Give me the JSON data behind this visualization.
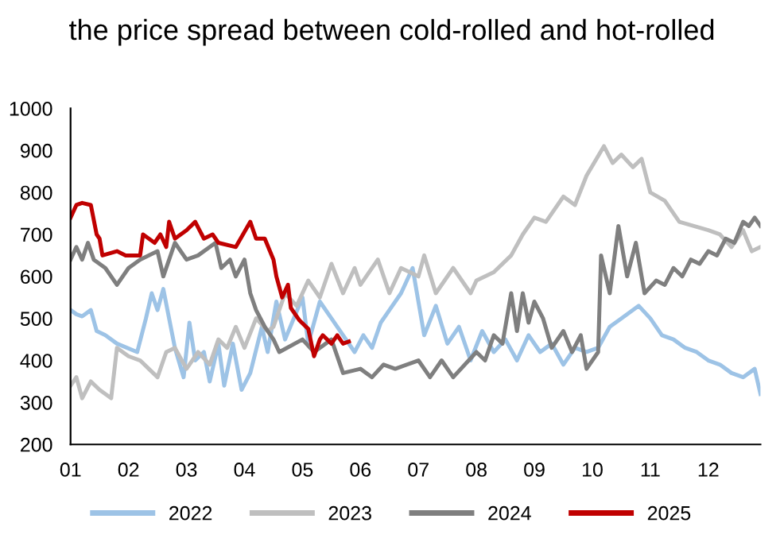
{
  "chart_data": {
    "type": "line",
    "title": "the price spread between cold-rolled and hot-rolled",
    "xlim": [
      1,
      12.9
    ],
    "ylim": [
      200,
      1000
    ],
    "yticks": [
      200,
      300,
      400,
      500,
      600,
      700,
      800,
      900,
      1000
    ],
    "xticks": [
      {
        "value": 1,
        "label": "01"
      },
      {
        "value": 2,
        "label": "02"
      },
      {
        "value": 3,
        "label": "03"
      },
      {
        "value": 4,
        "label": "04"
      },
      {
        "value": 5,
        "label": "05"
      },
      {
        "value": 6,
        "label": "06"
      },
      {
        "value": 7,
        "label": "07"
      },
      {
        "value": 8,
        "label": "08"
      },
      {
        "value": 9,
        "label": "09"
      },
      {
        "value": 10,
        "label": "10"
      },
      {
        "value": 11,
        "label": "11"
      },
      {
        "value": 12,
        "label": "12"
      }
    ],
    "grid": false,
    "legend": "bottom",
    "marker": "none",
    "line_style": "solid",
    "series": [
      {
        "name": "2022",
        "color": "#9dc3e6",
        "x": [
          1.0,
          1.1,
          1.2,
          1.35,
          1.45,
          1.6,
          1.8,
          2.15,
          2.3,
          2.4,
          2.5,
          2.6,
          2.7,
          2.8,
          2.95,
          3.05,
          3.15,
          3.3,
          3.4,
          3.55,
          3.65,
          3.8,
          3.95,
          4.1,
          4.3,
          4.4,
          4.55,
          4.7,
          5.0,
          5.1,
          5.3,
          5.5,
          5.9,
          6.05,
          6.2,
          6.35,
          6.5,
          6.7,
          6.9,
          7.1,
          7.3,
          7.5,
          7.7,
          7.9,
          8.1,
          8.3,
          8.5,
          8.7,
          8.9,
          9.1,
          9.3,
          9.5,
          9.7,
          9.9,
          10.1,
          10.3,
          10.5,
          10.8,
          11.0,
          11.2,
          11.4,
          11.6,
          11.8,
          12.0,
          12.2,
          12.4,
          12.6,
          12.8,
          12.9
        ],
        "values": [
          520,
          510,
          505,
          520,
          470,
          460,
          440,
          420,
          500,
          560,
          520,
          570,
          500,
          430,
          360,
          490,
          400,
          420,
          350,
          440,
          340,
          440,
          330,
          370,
          480,
          420,
          540,
          450,
          550,
          440,
          540,
          500,
          420,
          460,
          430,
          490,
          520,
          560,
          620,
          460,
          530,
          440,
          480,
          400,
          470,
          420,
          450,
          400,
          460,
          420,
          440,
          390,
          430,
          420,
          430,
          480,
          500,
          530,
          500,
          460,
          450,
          430,
          420,
          400,
          390,
          370,
          360,
          380,
          320
        ]
      },
      {
        "name": "2023",
        "color": "#bfbfbf",
        "x": [
          1.0,
          1.1,
          1.2,
          1.35,
          1.5,
          1.7,
          1.8,
          2.0,
          2.2,
          2.35,
          2.5,
          2.65,
          2.8,
          3.0,
          3.2,
          3.4,
          3.55,
          3.7,
          3.85,
          4.0,
          4.2,
          4.4,
          4.5,
          4.7,
          4.9,
          5.1,
          5.3,
          5.5,
          5.7,
          5.9,
          6.0,
          6.3,
          6.5,
          6.7,
          7.0,
          7.1,
          7.3,
          7.6,
          7.9,
          8.0,
          8.3,
          8.6,
          8.8,
          9.0,
          9.2,
          9.5,
          9.7,
          9.9,
          10.2,
          10.35,
          10.5,
          10.7,
          10.85,
          11.0,
          11.25,
          11.5,
          11.75,
          12.0,
          12.2,
          12.4,
          12.6,
          12.75,
          12.9
        ],
        "values": [
          340,
          360,
          310,
          350,
          330,
          310,
          430,
          410,
          400,
          380,
          360,
          420,
          430,
          380,
          420,
          390,
          450,
          430,
          480,
          430,
          500,
          470,
          480,
          560,
          530,
          590,
          550,
          630,
          560,
          620,
          580,
          640,
          560,
          620,
          600,
          650,
          560,
          620,
          560,
          590,
          610,
          650,
          700,
          740,
          730,
          790,
          770,
          840,
          910,
          870,
          890,
          860,
          880,
          800,
          780,
          730,
          720,
          710,
          700,
          670,
          710,
          660,
          670
        ]
      },
      {
        "name": "2024",
        "color": "#7f7f7f",
        "x": [
          1.0,
          1.1,
          1.2,
          1.3,
          1.4,
          1.6,
          1.8,
          2.0,
          2.2,
          2.5,
          2.6,
          2.8,
          3.0,
          3.2,
          3.5,
          3.6,
          3.75,
          3.85,
          4.0,
          4.1,
          4.2,
          4.35,
          4.5,
          4.6,
          5.0,
          5.2,
          5.5,
          5.7,
          6.0,
          6.2,
          6.4,
          6.6,
          7.0,
          7.2,
          7.4,
          7.6,
          8.0,
          8.15,
          8.3,
          8.45,
          8.6,
          8.7,
          8.8,
          8.9,
          9.0,
          9.15,
          9.3,
          9.5,
          9.65,
          9.8,
          9.9,
          10.1,
          10.15,
          10.3,
          10.45,
          10.6,
          10.75,
          10.9,
          11.1,
          11.25,
          11.4,
          11.55,
          11.7,
          11.85,
          12.0,
          12.15,
          12.3,
          12.45,
          12.6,
          12.7,
          12.8,
          12.9
        ],
        "values": [
          640,
          670,
          640,
          680,
          640,
          620,
          580,
          620,
          640,
          660,
          600,
          680,
          640,
          650,
          680,
          620,
          640,
          600,
          640,
          560,
          520,
          480,
          450,
          420,
          450,
          420,
          450,
          370,
          380,
          360,
          390,
          380,
          400,
          360,
          400,
          360,
          420,
          400,
          460,
          440,
          560,
          470,
          560,
          490,
          540,
          500,
          430,
          470,
          420,
          460,
          380,
          420,
          650,
          560,
          720,
          600,
          680,
          560,
          590,
          580,
          620,
          600,
          640,
          630,
          660,
          650,
          690,
          680,
          730,
          720,
          740,
          720
        ]
      },
      {
        "name": "2025",
        "color": "#c00000",
        "x": [
          1.0,
          1.1,
          1.2,
          1.35,
          1.45,
          1.5,
          1.55,
          1.8,
          1.95,
          2.2,
          2.25,
          2.45,
          2.55,
          2.65,
          2.7,
          2.8,
          3.0,
          3.15,
          3.3,
          3.45,
          3.55,
          3.85,
          4.1,
          4.2,
          4.35,
          4.5,
          4.55,
          4.65,
          4.75,
          4.8,
          4.95,
          5.1,
          5.2,
          5.3,
          5.35,
          5.5,
          5.6,
          5.7,
          5.8
        ],
        "values": [
          740,
          770,
          775,
          770,
          700,
          690,
          650,
          660,
          650,
          650,
          700,
          680,
          700,
          670,
          730,
          690,
          710,
          730,
          690,
          700,
          680,
          670,
          730,
          690,
          690,
          640,
          600,
          550,
          580,
          525,
          495,
          475,
          410,
          450,
          460,
          440,
          460,
          440,
          445
        ]
      }
    ]
  }
}
